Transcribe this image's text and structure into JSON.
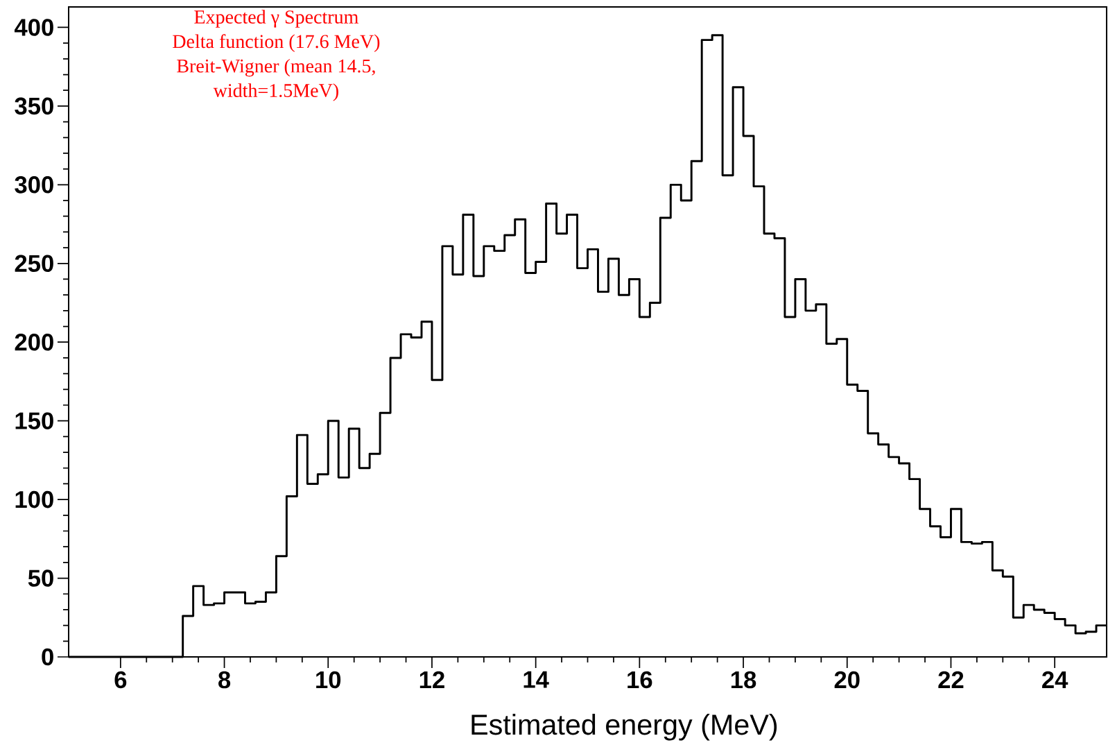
{
  "chart_data": {
    "type": "histogram",
    "xlabel": "Estimated energy (MeV)",
    "annotations": [
      "Expected γ  Spectrum",
      "Delta function  (17.6 MeV)",
      "Breit-Wigner (mean 14.5,",
      "width=1.5MeV)"
    ],
    "bins": [
      5.0,
      5.2,
      5.4,
      5.6,
      5.8,
      6.0,
      6.2,
      6.4,
      6.6,
      6.8,
      7.0,
      7.2,
      7.4,
      7.6,
      7.8,
      8.0,
      8.2,
      8.4,
      8.6,
      8.8,
      9.0,
      9.2,
      9.4,
      9.6,
      9.8,
      10.0,
      10.2,
      10.4,
      10.6,
      10.8,
      11.0,
      11.2,
      11.4,
      11.6,
      11.8,
      12.0,
      12.2,
      12.4,
      12.6,
      12.8,
      13.0,
      13.2,
      13.4,
      13.6,
      13.8,
      14.0,
      14.2,
      14.4,
      14.6,
      14.8,
      15.0,
      15.2,
      15.4,
      15.6,
      15.8,
      16.0,
      16.2,
      16.4,
      16.6,
      16.8,
      17.0,
      17.2,
      17.4,
      17.6,
      17.8,
      18.0,
      18.2,
      18.4,
      18.6,
      18.8,
      19.0,
      19.2,
      19.4,
      19.6,
      19.8,
      20.0,
      20.2,
      20.4,
      20.6,
      20.8,
      21.0,
      21.2,
      21.4,
      21.6,
      21.8,
      22.0,
      22.2,
      22.4,
      22.6,
      22.8,
      23.0,
      23.2,
      23.4,
      23.6,
      23.8,
      24.0,
      24.2,
      24.4,
      24.6,
      24.8,
      25.0
    ],
    "values": [
      0,
      0,
      0,
      0,
      0,
      0,
      0,
      0,
      0,
      0,
      0,
      26,
      45,
      33,
      34,
      41,
      41,
      34,
      35,
      41,
      64,
      102,
      141,
      110,
      116,
      150,
      114,
      145,
      120,
      129,
      155,
      190,
      205,
      203,
      213,
      176,
      261,
      243,
      281,
      242,
      261,
      258,
      268,
      278,
      244,
      251,
      288,
      269,
      281,
      247,
      259,
      232,
      253,
      230,
      240,
      216,
      225,
      279,
      300,
      290,
      315,
      392,
      395,
      306,
      362,
      331,
      299,
      269,
      266,
      216,
      240,
      220,
      224,
      199,
      202,
      173,
      169,
      142,
      135,
      127,
      123,
      113,
      94,
      83,
      76,
      94,
      73,
      72,
      73,
      55,
      51,
      25,
      33,
      30,
      28,
      24,
      20,
      15,
      16,
      20
    ],
    "color": "#000000",
    "xlim": [
      5,
      25
    ],
    "ylim": [
      0,
      413
    ],
    "xticks": [
      6,
      8,
      10,
      12,
      14,
      16,
      18,
      20,
      22,
      24
    ],
    "yticks": [
      0,
      50,
      100,
      150,
      200,
      250,
      300,
      350,
      400
    ]
  }
}
